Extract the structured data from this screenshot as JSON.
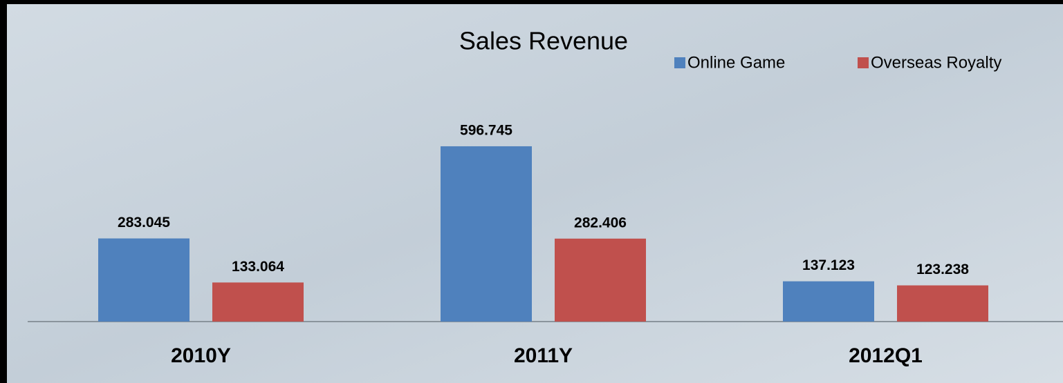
{
  "chart_data": {
    "type": "bar",
    "title": "Sales Revenue",
    "categories": [
      "2010Y",
      "2011Y",
      "2012Q1"
    ],
    "series": [
      {
        "name": "Online Game",
        "color": "#4f81bd",
        "values": [
          283.045,
          596.745,
          137.123
        ]
      },
      {
        "name": "Overseas Royalty",
        "color": "#c0504d",
        "values": [
          133.064,
          282.406,
          123.238
        ]
      }
    ],
    "legend": "top-right"
  }
}
